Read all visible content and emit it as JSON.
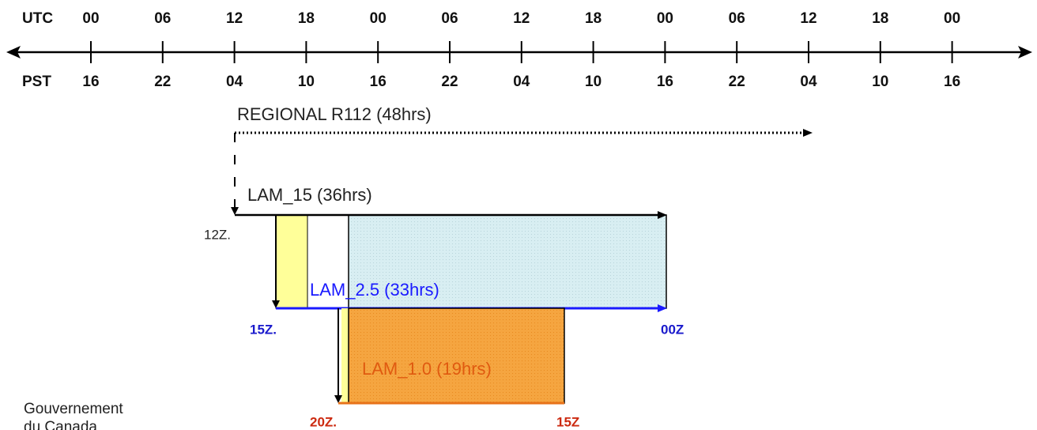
{
  "timeline": {
    "utc_label": "UTC",
    "utc_ticks": [
      "00",
      "06",
      "12",
      "18",
      "00",
      "06",
      "12",
      "18",
      "00",
      "06",
      "12",
      "18",
      "00"
    ],
    "pst_label": "PST",
    "pst_ticks": [
      "16",
      "22",
      "04",
      "10",
      "16",
      "22",
      "04",
      "10",
      "16",
      "22",
      "04",
      "10",
      "16"
    ]
  },
  "runs": [
    {
      "label": "REGIONAL R112 (48hrs)"
    },
    {
      "label": "LAM_15  (36hrs)",
      "start_label": "12Z."
    },
    {
      "label": "LAM_2.5 (33hrs)",
      "start_label": "15Z.",
      "end_label": "00Z"
    },
    {
      "label": "LAM_1.0 (19hrs)",
      "start_label": "20Z.",
      "end_label": "15Z"
    }
  ],
  "footer": {
    "line1": "Gouvernement",
    "line2": "du Canada"
  }
}
